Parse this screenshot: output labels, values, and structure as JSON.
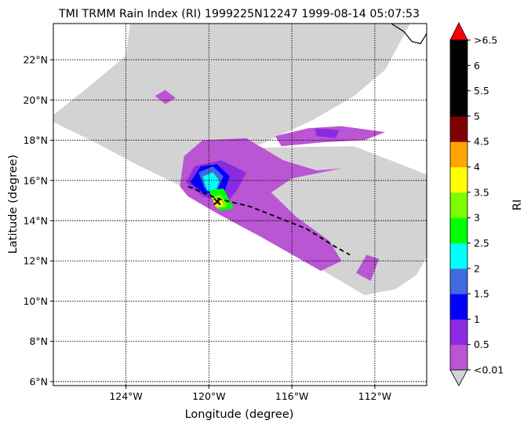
{
  "chart_data": {
    "type": "heatmap",
    "title": "TMI TRMM Rain Index (RI) 1999225N12247 1999-08-14 05:07:53",
    "xlabel": "Longitude (degree)",
    "ylabel": "Latitude (degree)",
    "xlim": [
      -127.5,
      -109.5
    ],
    "ylim": [
      5.8,
      23.8
    ],
    "x_ticks": [
      {
        "value": -124,
        "label": "124°W"
      },
      {
        "value": -120,
        "label": "120°W"
      },
      {
        "value": -116,
        "label": "116°W"
      },
      {
        "value": -112,
        "label": "112°W"
      }
    ],
    "y_ticks": [
      {
        "value": 6,
        "label": "6°N"
      },
      {
        "value": 8,
        "label": "8°N"
      },
      {
        "value": 10,
        "label": "10°N"
      },
      {
        "value": 12,
        "label": "12°N"
      },
      {
        "value": 14,
        "label": "14°N"
      },
      {
        "value": 16,
        "label": "16°N"
      },
      {
        "value": 18,
        "label": "18°N"
      },
      {
        "value": 20,
        "label": "20°N"
      },
      {
        "value": 22,
        "label": "22°N"
      }
    ],
    "grid": true,
    "swath_color": "#d3d3d3",
    "swath_polygon": [
      [
        -127.5,
        19.25
      ],
      [
        -125.5,
        20.9
      ],
      [
        -124.0,
        22.2
      ],
      [
        -123.8,
        23.8
      ],
      [
        -110.3,
        23.8
      ],
      [
        -111.5,
        21.5
      ],
      [
        -113.0,
        20.2
      ],
      [
        -115.0,
        19.0
      ],
      [
        -117.5,
        17.8
      ],
      [
        -119.5,
        17.6
      ],
      [
        -113.0,
        17.7
      ],
      [
        -109.5,
        16.3
      ],
      [
        -109.5,
        12.2
      ],
      [
        -110.0,
        11.3
      ],
      [
        -111.0,
        10.6
      ],
      [
        -112.5,
        10.3
      ],
      [
        -121.5,
        15.8
      ],
      [
        -123.5,
        16.8
      ],
      [
        -125.5,
        17.9
      ],
      [
        -127.5,
        18.9
      ]
    ],
    "rain_regions": [
      {
        "level": 0.25,
        "points": [
          [
            -121.4,
            15.7
          ],
          [
            -121.2,
            17.2
          ],
          [
            -120.3,
            18.0
          ],
          [
            -118.2,
            18.1
          ],
          [
            -116.4,
            17.0
          ],
          [
            -114.8,
            16.5
          ],
          [
            -113.6,
            16.6
          ],
          [
            -116.0,
            16.1
          ],
          [
            -117.0,
            15.4
          ],
          [
            -115.8,
            14.2
          ],
          [
            -114.2,
            13.0
          ],
          [
            -113.6,
            12.0
          ],
          [
            -114.6,
            11.5
          ],
          [
            -117.5,
            13.2
          ],
          [
            -119.5,
            14.3
          ],
          [
            -121.0,
            15.2
          ]
        ]
      },
      {
        "level": 0.25,
        "points": [
          [
            -116.8,
            18.2
          ],
          [
            -115.2,
            18.6
          ],
          [
            -113.6,
            18.7
          ],
          [
            -111.5,
            18.4
          ],
          [
            -112.5,
            18.0
          ],
          [
            -114.5,
            17.9
          ],
          [
            -116.5,
            17.7
          ]
        ]
      },
      {
        "level": 0.25,
        "points": [
          [
            -122.6,
            20.2
          ],
          [
            -122.1,
            20.5
          ],
          [
            -121.6,
            20.1
          ],
          [
            -122.1,
            19.8
          ]
        ]
      },
      {
        "level": 0.25,
        "points": [
          [
            -112.4,
            12.3
          ],
          [
            -111.8,
            12.1
          ],
          [
            -112.2,
            11.0
          ],
          [
            -112.9,
            11.4
          ]
        ]
      },
      {
        "level": 0.75,
        "points": [
          [
            -121.1,
            15.9
          ],
          [
            -120.7,
            16.7
          ],
          [
            -119.4,
            17.0
          ],
          [
            -118.2,
            16.4
          ],
          [
            -118.6,
            15.6
          ],
          [
            -119.1,
            14.9
          ],
          [
            -120.3,
            15.2
          ]
        ]
      },
      {
        "level": 0.75,
        "points": [
          [
            -114.9,
            18.6
          ],
          [
            -113.7,
            18.5
          ],
          [
            -113.9,
            18.1
          ],
          [
            -114.8,
            18.2
          ]
        ]
      },
      {
        "level": 1.25,
        "points": [
          [
            -120.9,
            15.9
          ],
          [
            -120.4,
            16.7
          ],
          [
            -119.6,
            16.8
          ],
          [
            -119.0,
            16.2
          ],
          [
            -119.3,
            15.3
          ],
          [
            -120.3,
            15.4
          ]
        ]
      },
      {
        "level": 1.75,
        "points": [
          [
            -120.5,
            16.4
          ],
          [
            -119.8,
            16.7
          ],
          [
            -119.3,
            16.2
          ],
          [
            -119.6,
            15.5
          ],
          [
            -120.2,
            15.6
          ]
        ]
      },
      {
        "level": 2.25,
        "points": [
          [
            -120.3,
            16.2
          ],
          [
            -119.8,
            16.4
          ],
          [
            -119.5,
            16.0
          ],
          [
            -119.7,
            15.4
          ],
          [
            -120.1,
            15.5
          ]
        ]
      },
      {
        "level": 2.75,
        "points": [
          [
            -120.0,
            15.5
          ],
          [
            -119.3,
            15.6
          ],
          [
            -118.8,
            14.6
          ],
          [
            -119.5,
            14.5
          ]
        ]
      },
      {
        "level": 3.25,
        "points": [
          [
            -119.9,
            15.2
          ],
          [
            -119.4,
            15.3
          ],
          [
            -119.1,
            14.7
          ],
          [
            -119.6,
            14.6
          ]
        ]
      },
      {
        "level": 3.75,
        "points": [
          [
            -119.8,
            15.1
          ],
          [
            -119.4,
            15.1
          ],
          [
            -119.3,
            14.7
          ],
          [
            -119.7,
            14.7
          ]
        ]
      },
      {
        "level": 4.25,
        "points": [
          [
            -119.65,
            15.0
          ],
          [
            -119.45,
            15.0
          ],
          [
            -119.45,
            14.8
          ],
          [
            -119.65,
            14.8
          ]
        ]
      }
    ],
    "track": [
      [
        -121.0,
        15.7
      ],
      [
        -119.6,
        15.1
      ],
      [
        -118.0,
        14.7
      ],
      [
        -115.3,
        13.6
      ],
      [
        -113.9,
        12.7
      ],
      [
        -113.2,
        12.3
      ]
    ],
    "storm_center": [
      -119.6,
      14.95
    ],
    "coastline": [
      [
        -111.2,
        23.8
      ],
      [
        -110.6,
        23.4
      ],
      [
        -110.2,
        22.9
      ],
      [
        -109.8,
        22.8
      ],
      [
        -109.5,
        23.3
      ]
    ],
    "colorbar": {
      "label": "RI",
      "levels": [
        "<0.01",
        "0.5",
        "1",
        "1.5",
        "2",
        "2.5",
        "3",
        "3.5",
        "4",
        "4.5",
        "5",
        "5.5",
        "6",
        ">6.5"
      ],
      "colors": [
        "#ba55d3",
        "#8a2be2",
        "#0000ff",
        "#4169e1",
        "#00ffff",
        "#00ff00",
        "#7cfc00",
        "#ffff00",
        "#ffa500",
        "#800000",
        "#000000",
        "#000000",
        "#000000"
      ],
      "under_color": "#d3d3d3",
      "over_color": "#ff0000"
    }
  }
}
